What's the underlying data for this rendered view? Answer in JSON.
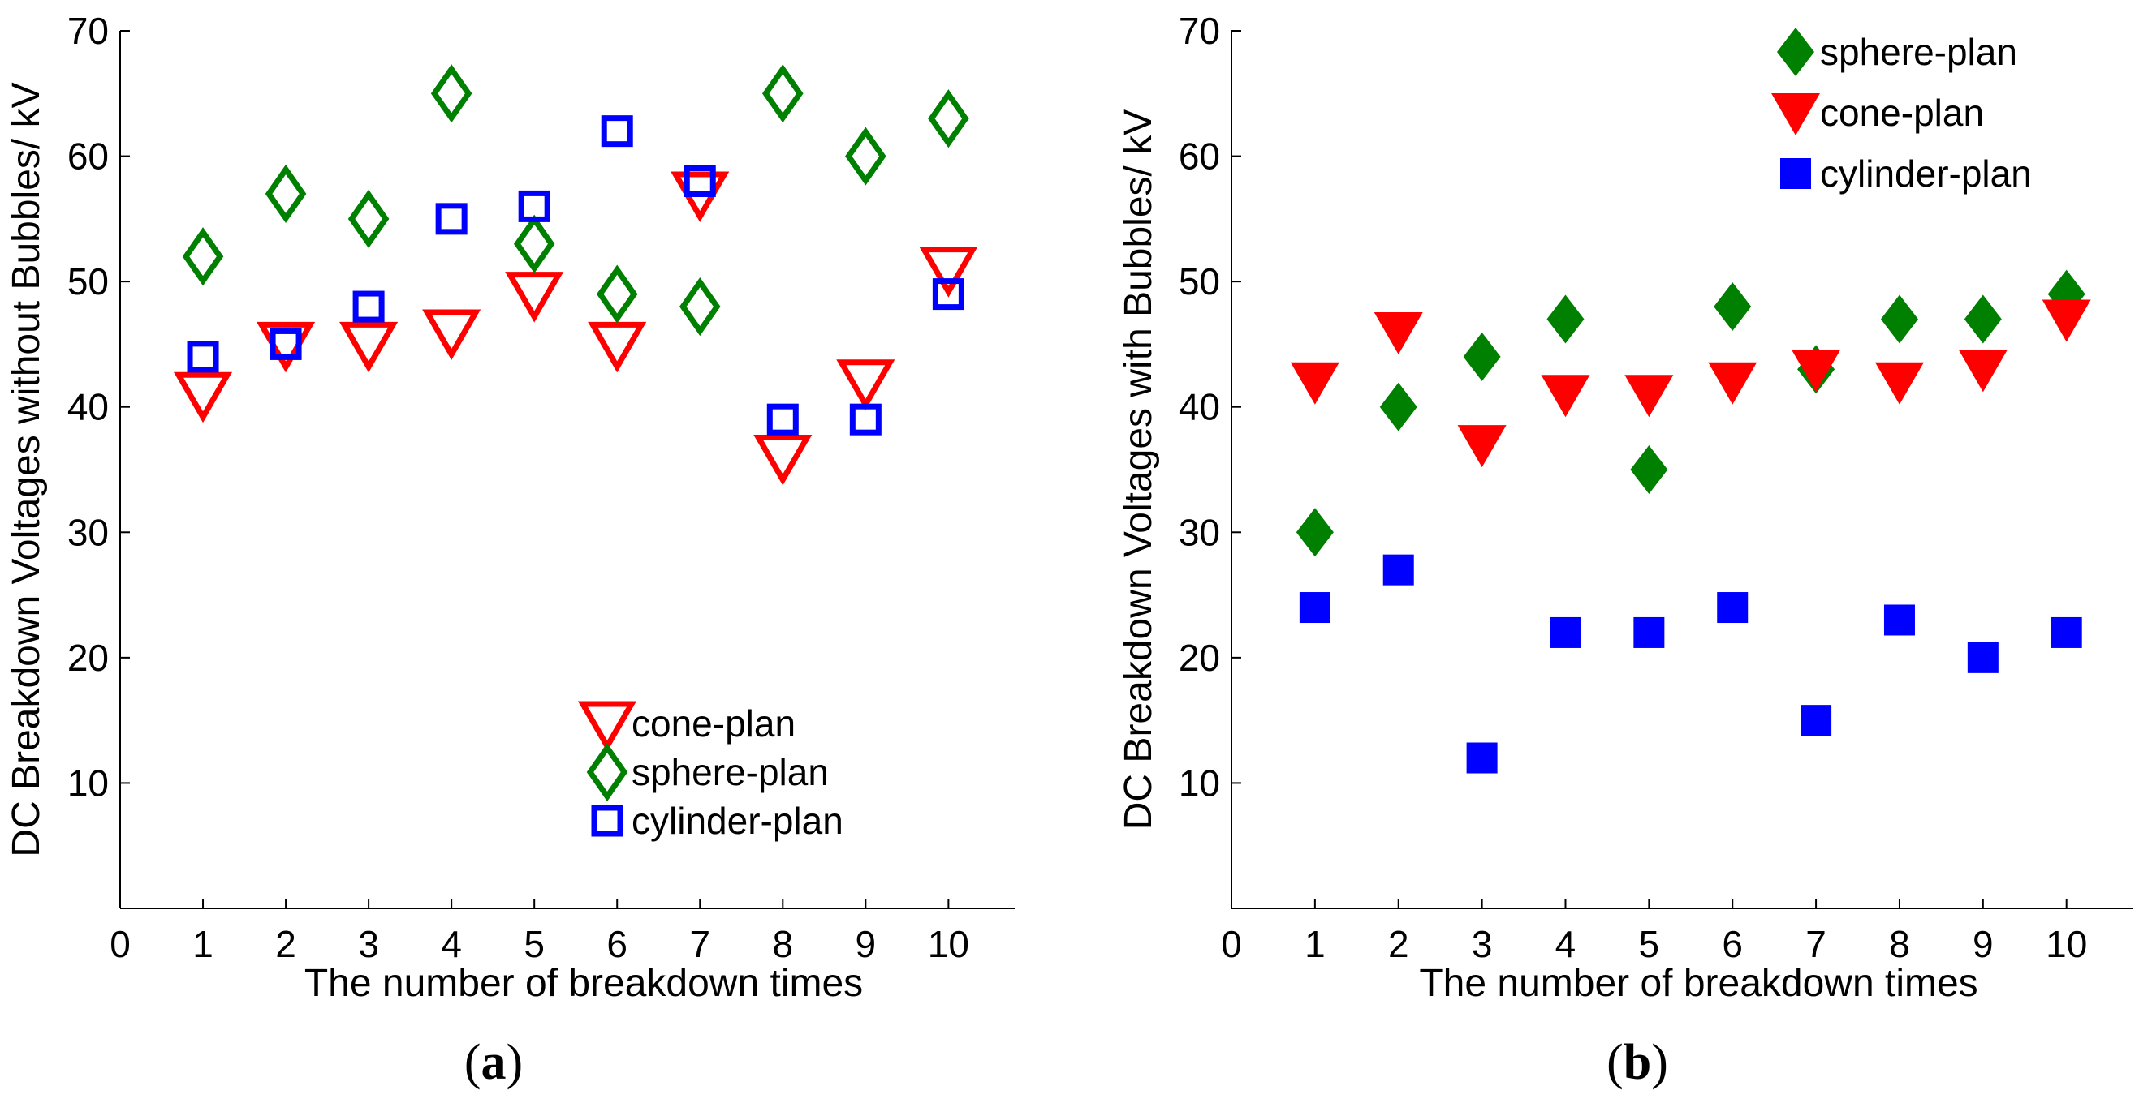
{
  "chart_data": [
    {
      "type": "scatter",
      "panel_label": "a",
      "xlabel": "The number of breakdown times",
      "ylabel": "DC Breakdown Voltages without Bubbles/ kV",
      "xlim": [
        0,
        10.8
      ],
      "ylim": [
        0,
        70
      ],
      "x_ticks": [
        "0",
        "1",
        "2",
        "3",
        "4",
        "5",
        "6",
        "7",
        "8",
        "9",
        "10"
      ],
      "y_ticks": [
        "10",
        "20",
        "30",
        "40",
        "50",
        "60",
        "70"
      ],
      "x": [
        1,
        2,
        3,
        4,
        5,
        6,
        7,
        8,
        9,
        10
      ],
      "legend_position": "bottom-right",
      "series": [
        {
          "name": "cone-plan",
          "marker": "triangle-down",
          "filled": false,
          "color": "#ff0000",
          "values": [
            41,
            45,
            45,
            46,
            49,
            45,
            57,
            36,
            42,
            51
          ]
        },
        {
          "name": "sphere-plan",
          "marker": "diamond",
          "filled": false,
          "color": "#008000",
          "values": [
            52,
            57,
            55,
            65,
            53,
            49,
            48,
            65,
            60,
            63
          ]
        },
        {
          "name": "cylinder-plan",
          "marker": "square",
          "filled": false,
          "color": "#0000ff",
          "values": [
            44,
            45,
            48,
            55,
            56,
            62,
            58,
            39,
            39,
            49
          ]
        }
      ],
      "legend_order": [
        "cone-plan",
        "sphere-plan",
        "cylinder-plan"
      ]
    },
    {
      "type": "scatter",
      "panel_label": "b",
      "xlabel": "The number of breakdown times",
      "ylabel": "DC Breakdown Voltages with Bubbles/ kV",
      "xlim": [
        0,
        10.8
      ],
      "ylim": [
        0,
        70
      ],
      "x_ticks": [
        "0",
        "1",
        "2",
        "3",
        "4",
        "5",
        "6",
        "7",
        "8",
        "9",
        "10"
      ],
      "y_ticks": [
        "10",
        "20",
        "30",
        "40",
        "50",
        "60",
        "70"
      ],
      "x": [
        1,
        2,
        3,
        4,
        5,
        6,
        7,
        8,
        9,
        10
      ],
      "legend_position": "top-right",
      "series": [
        {
          "name": "sphere-plan",
          "marker": "diamond",
          "filled": true,
          "color": "#008000",
          "values": [
            30,
            40,
            44,
            47,
            35,
            48,
            43,
            47,
            47,
            49
          ]
        },
        {
          "name": "cone-plan",
          "marker": "triangle-down",
          "filled": true,
          "color": "#ff0000",
          "values": [
            42,
            46,
            37,
            41,
            41,
            42,
            43,
            42,
            43,
            47
          ]
        },
        {
          "name": "cylinder-plan",
          "marker": "square",
          "filled": true,
          "color": "#0000ff",
          "values": [
            24,
            27,
            12,
            22,
            22,
            24,
            15,
            23,
            20,
            22
          ]
        }
      ],
      "legend_order": [
        "sphere-plan",
        "cone-plan",
        "cylinder-plan"
      ]
    }
  ],
  "captions": {
    "a_open": "(",
    "a_letter": "a",
    "a_close": ")",
    "b_open": "(",
    "b_letter": "b",
    "b_close": ")"
  }
}
